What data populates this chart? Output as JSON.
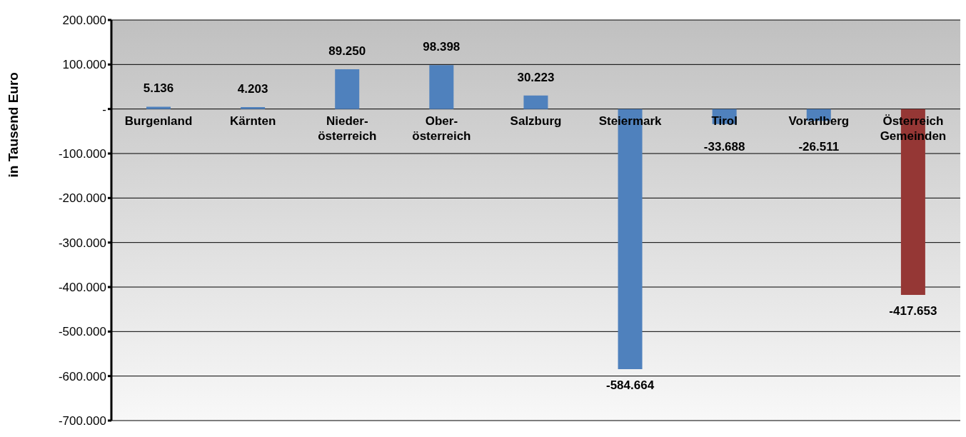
{
  "chart_data": {
    "type": "bar",
    "ylabel": "in Tausend Euro",
    "categories": [
      "Burgenland",
      "Kärnten",
      "Nieder-\nösterreich",
      "Ober-\nösterreich",
      "Salzburg",
      "Steiermark",
      "Tirol",
      "Vorarlberg",
      "Österreich\nGemeinden"
    ],
    "values": [
      5136,
      4203,
      89250,
      98398,
      30223,
      -584664,
      -33688,
      -26511,
      -417653
    ],
    "colors": [
      "#4f81bd",
      "#4f81bd",
      "#4f81bd",
      "#4f81bd",
      "#4f81bd",
      "#4f81bd",
      "#4f81bd",
      "#4f81bd",
      "#953735"
    ],
    "value_labels": [
      "5.136",
      "4.203",
      "89.250",
      "98.398",
      "30.223",
      "-584.664",
      "-33.688",
      "-26.511",
      "-417.653"
    ],
    "ylim": [
      -700000,
      200000
    ],
    "yticks": [
      {
        "value": 200000,
        "label": "200.000"
      },
      {
        "value": 100000,
        "label": "100.000"
      },
      {
        "value": 0,
        "label": "-"
      },
      {
        "value": -100000,
        "label": "-100.000"
      },
      {
        "value": -200000,
        "label": "-200.000"
      },
      {
        "value": -300000,
        "label": "-300.000"
      },
      {
        "value": -400000,
        "label": "-400.000"
      },
      {
        "value": -500000,
        "label": "-500.000"
      },
      {
        "value": -600000,
        "label": "-600.000"
      },
      {
        "value": -700000,
        "label": "-700.000"
      }
    ],
    "grid": "y",
    "legend": false
  }
}
